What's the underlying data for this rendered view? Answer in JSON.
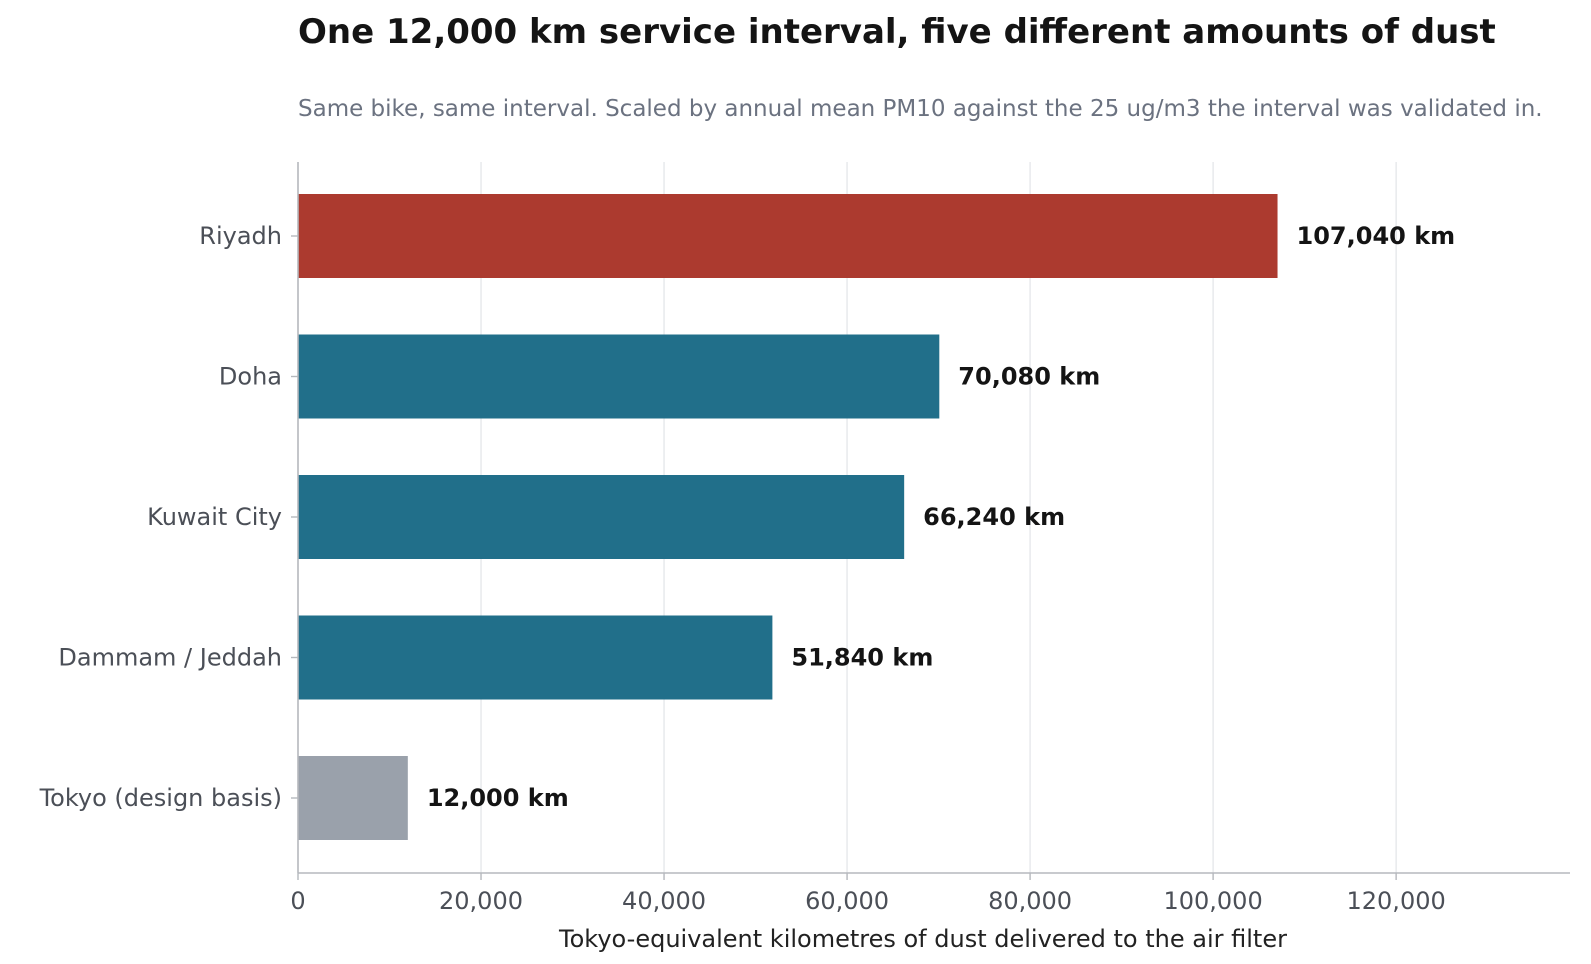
{
  "chart_data": {
    "type": "bar",
    "orientation": "horizontal",
    "title": "One 12,000 km service interval, five different amounts of dust",
    "subtitle": "Same bike, same interval. Scaled by annual mean PM10 against the 25 ug/m3 the interval was validated in.",
    "xlabel": "Tokyo-equivalent kilometres of dust delivered to the air filter",
    "ylabel": "",
    "xlim": [
      0,
      139000
    ],
    "x_ticks": [
      0,
      20000,
      40000,
      60000,
      80000,
      100000,
      120000
    ],
    "x_tick_labels": [
      "0",
      "20,000",
      "40,000",
      "60,000",
      "80,000",
      "100,000",
      "120,000"
    ],
    "grid": "vertical",
    "categories": [
      "Riyadh",
      "Doha",
      "Kuwait City",
      "Dammam / Jeddah",
      "Tokyo (design basis)"
    ],
    "values": [
      107040,
      70080,
      66240,
      51840,
      12000
    ],
    "value_labels": [
      "107,040 km",
      "70,080 km",
      "66,240 km",
      "51,840 km",
      "12,000 km"
    ],
    "colors": [
      "#ac3a2f",
      "#216f8a",
      "#216f8a",
      "#216f8a",
      "#9aa1ab"
    ]
  },
  "style": {
    "axis_color": "#b5b8bd",
    "grid_color": "#e6e8eb",
    "tick_label_color": "#4b4f57",
    "value_label_color": "#141414",
    "axis_title_color": "#222222"
  }
}
